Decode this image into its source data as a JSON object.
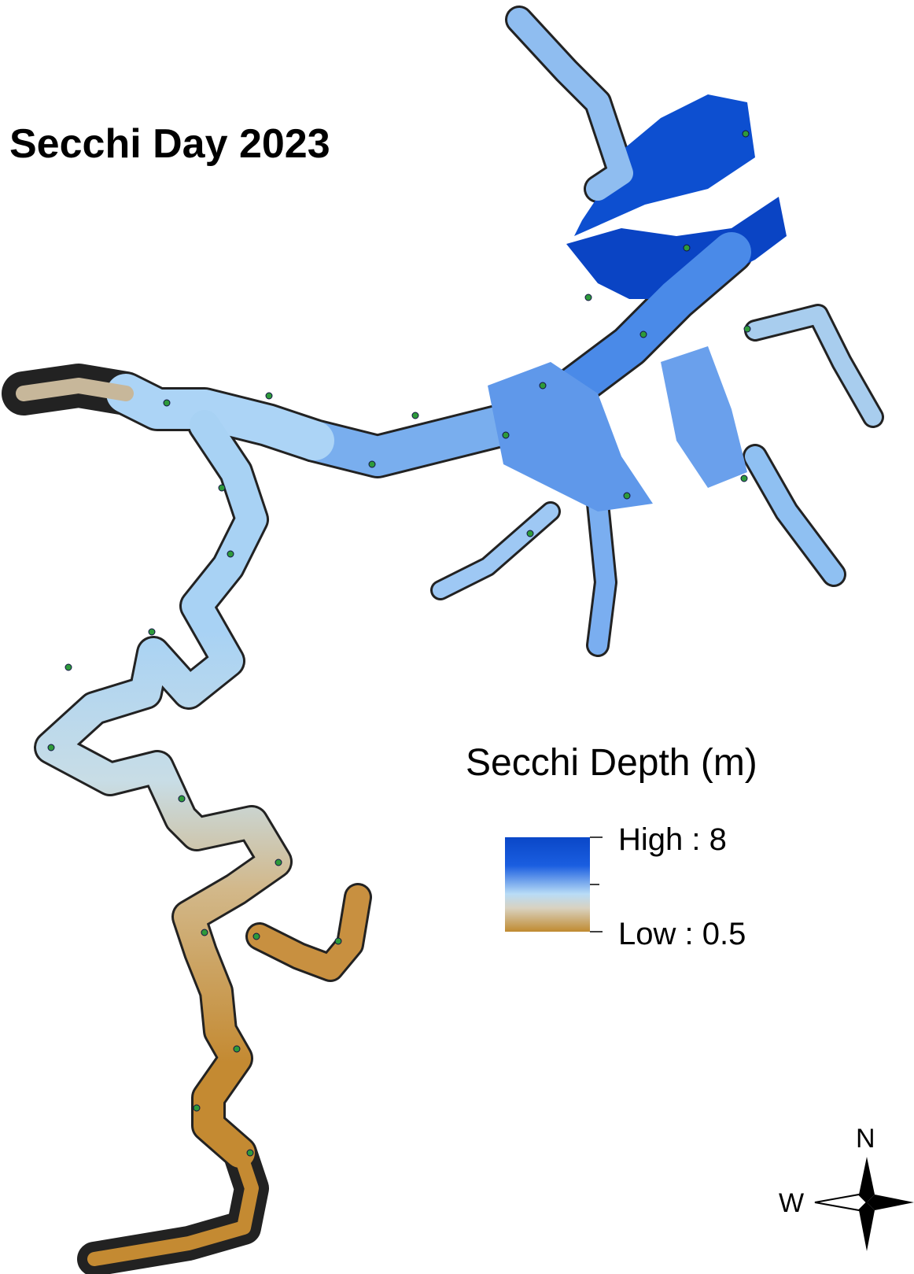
{
  "map": {
    "title": "Secchi Day 2023",
    "legend": {
      "title": "Secchi Depth (m)",
      "high_label": "High : 8",
      "low_label": "Low : 0.5"
    },
    "compass": {
      "north": "N",
      "west": "W"
    }
  }
}
